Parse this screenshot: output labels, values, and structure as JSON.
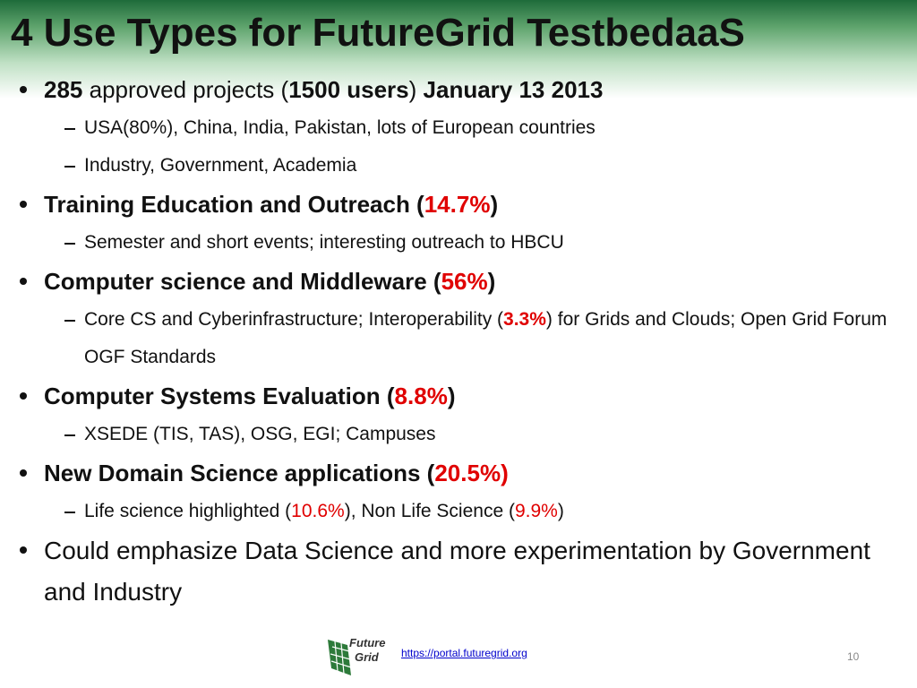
{
  "title": "4 Use Types for FutureGrid TestbedaaS",
  "bullets": [
    {
      "runs": [
        {
          "text": "285",
          "style": "bold"
        },
        {
          "text": " approved projects (",
          "style": "plain"
        },
        {
          "text": "1500 users",
          "style": "bold"
        },
        {
          "text": ") ",
          "style": "plain"
        },
        {
          "text": "January 13 2013",
          "style": "bold"
        }
      ],
      "subs": [
        {
          "runs": [
            {
              "text": "USA(80%), China, India, Pakistan, lots of European countries",
              "style": "plain"
            }
          ]
        },
        {
          "runs": [
            {
              "text": "Industry, Government, Academia",
              "style": "plain"
            }
          ]
        }
      ]
    },
    {
      "runs": [
        {
          "text": "Training Education and Outreach (",
          "style": "bold"
        },
        {
          "text": "14.7%",
          "style": "red-bold"
        },
        {
          "text": ")",
          "style": "bold"
        }
      ],
      "subs": [
        {
          "runs": [
            {
              "text": "Semester and short events; interesting outreach to HBCU",
              "style": "plain"
            }
          ]
        }
      ]
    },
    {
      "runs": [
        {
          "text": "Computer science and Middleware (",
          "style": "bold"
        },
        {
          "text": "56%",
          "style": "red-bold"
        },
        {
          "text": ")",
          "style": "bold"
        }
      ],
      "subs": [
        {
          "runs": [
            {
              "text": "Core CS and Cyberinfrastructure; Interoperability (",
              "style": "plain"
            },
            {
              "text": "3.3%",
              "style": "red-bold"
            },
            {
              "text": ") for Grids and Clouds; Open Grid Forum OGF Standards",
              "style": "plain"
            }
          ]
        }
      ]
    },
    {
      "runs": [
        {
          "text": "Computer Systems Evaluation (",
          "style": "bold"
        },
        {
          "text": "8.8%",
          "style": "red-bold"
        },
        {
          "text": ")",
          "style": "bold"
        }
      ],
      "subs": [
        {
          "runs": [
            {
              "text": "XSEDE (TIS, TAS), OSG, EGI; Campuses",
              "style": "plain"
            }
          ]
        }
      ]
    },
    {
      "runs": [
        {
          "text": "New Domain Science applications (",
          "style": "bold"
        },
        {
          "text": "20.5%)",
          "style": "red-bold"
        }
      ],
      "subs": [
        {
          "runs": [
            {
              "text": "Life science highlighted (",
              "style": "plain"
            },
            {
              "text": "10.6%",
              "style": "red"
            },
            {
              "text": "), Non Life Science (",
              "style": "plain"
            },
            {
              "text": "9.9%",
              "style": "red"
            },
            {
              "text": ")",
              "style": "plain"
            }
          ]
        }
      ]
    },
    {
      "runs": [
        {
          "text": "Could emphasize Data Science and more experimentation by Government and Industry",
          "style": "plain"
        }
      ],
      "subs": []
    }
  ],
  "footer": {
    "logo": [
      "Future",
      "Grid"
    ],
    "link": "https://portal.futuregrid.org",
    "page": "10"
  }
}
